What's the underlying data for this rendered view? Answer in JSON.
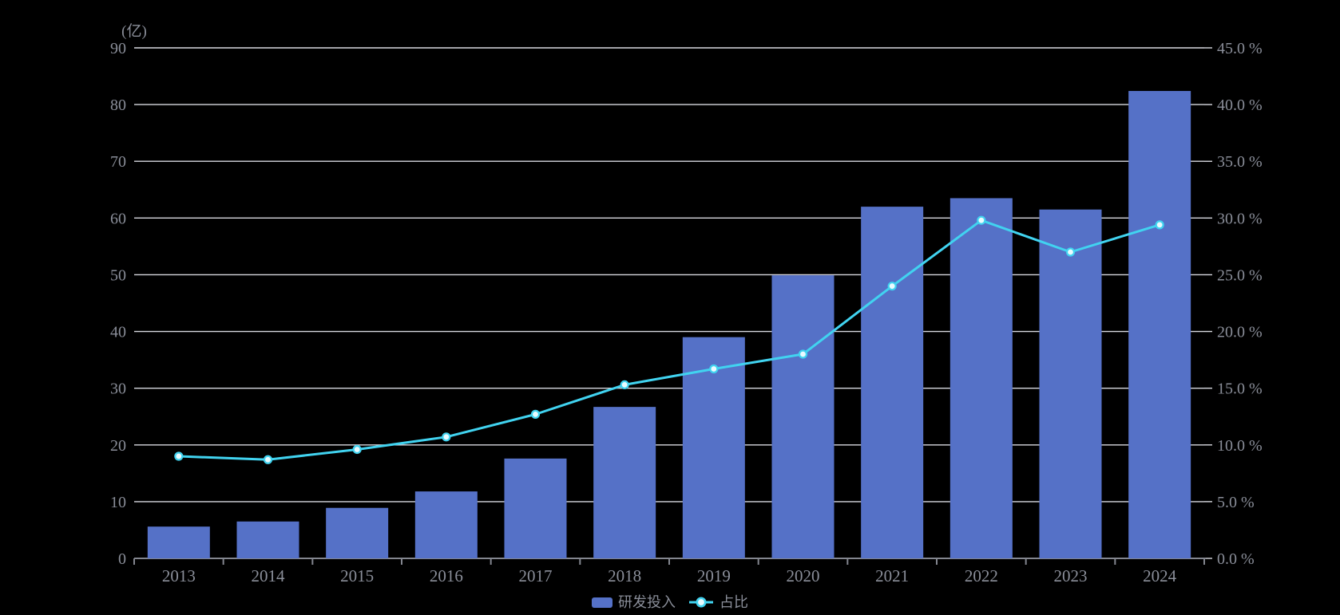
{
  "colors": {
    "background": "#000000",
    "bar": "#5571C7",
    "line": "#41D3F0",
    "marker_fill": "#EAFBFF",
    "grid": "#D8D9E0",
    "axis_line": "#83868F",
    "axis_label": "#8A8E99"
  },
  "chart_data": {
    "type": "bar",
    "title": "",
    "categories": [
      "2013",
      "2014",
      "2015",
      "2016",
      "2017",
      "2018",
      "2019",
      "2020",
      "2021",
      "2022",
      "2023",
      "2024"
    ],
    "series": [
      {
        "name": "研发投入",
        "type": "bar",
        "axis": "left",
        "values": [
          5.6,
          6.5,
          8.9,
          11.8,
          17.6,
          26.7,
          39.0,
          49.9,
          62.0,
          63.5,
          61.5,
          82.4
        ]
      },
      {
        "name": "占比",
        "type": "line",
        "axis": "right",
        "values": [
          9.0,
          8.7,
          9.6,
          10.7,
          12.7,
          15.3,
          16.7,
          18.0,
          24.0,
          29.8,
          27.0,
          29.4
        ]
      }
    ],
    "left_axis": {
      "unit": "(亿)",
      "min": 0,
      "max": 90,
      "step": 10,
      "tick_labels": [
        "0",
        "10",
        "20",
        "30",
        "40",
        "50",
        "60",
        "70",
        "80",
        "90"
      ]
    },
    "right_axis": {
      "min": 0,
      "max": 45,
      "step": 5,
      "tick_labels": [
        "0.0 %",
        "5.0 %",
        "10.0 %",
        "15.0 %",
        "20.0 %",
        "25.0 %",
        "30.0 %",
        "35.0 %",
        "40.0 %",
        "45.0 %"
      ]
    },
    "grid": true,
    "legend_position": "bottom-center",
    "legend": [
      "研发投入",
      "占比"
    ]
  }
}
